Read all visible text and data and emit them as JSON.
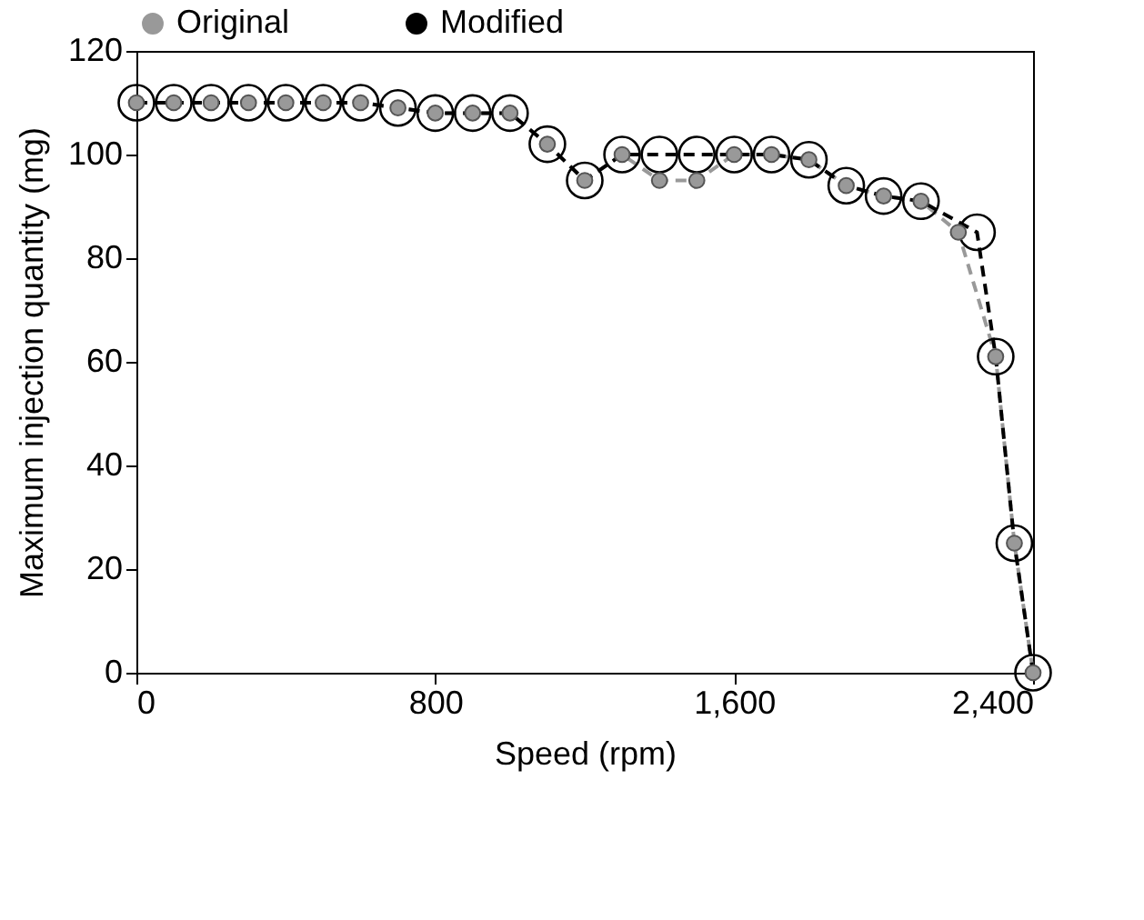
{
  "chart_data": {
    "type": "line",
    "xlabel": "Speed (rpm)",
    "ylabel": "Maximum injection quantity  (mg)",
    "xlim": [
      0,
      2400
    ],
    "xticks": [
      0,
      {
        "value": 800,
        "label": "800"
      },
      {
        "value": 1600,
        "label": "1,600"
      },
      {
        "value": 2400,
        "label": "2,400"
      }
    ],
    "ylim": [
      0,
      120
    ],
    "yticks": [
      0,
      20,
      40,
      60,
      80,
      100,
      120
    ],
    "grid": false,
    "legend": "top",
    "marker": "circle",
    "line_style": "dashed",
    "series": [
      {
        "name": "Original",
        "color": "#999999",
        "x": [
          0,
          100,
          200,
          300,
          400,
          500,
          600,
          700,
          800,
          900,
          1000,
          1100,
          1200,
          1300,
          1400,
          1500,
          1600,
          1700,
          1800,
          1900,
          2000,
          2100,
          2200,
          2300,
          2350,
          2400
        ],
        "values": [
          110,
          110,
          110,
          110,
          110,
          110,
          110,
          109,
          108,
          108,
          108,
          102,
          95,
          100,
          95,
          95,
          100,
          100,
          99,
          94,
          92,
          91,
          85,
          61,
          25,
          0
        ]
      },
      {
        "name": "Modified",
        "color": "#000000",
        "x": [
          0,
          100,
          200,
          300,
          400,
          500,
          600,
          700,
          800,
          900,
          1000,
          1100,
          1200,
          1300,
          1400,
          1500,
          1600,
          1700,
          1800,
          1900,
          2000,
          2100,
          2250,
          2300,
          2350,
          2400
        ],
        "values": [
          110,
          110,
          110,
          110,
          110,
          110,
          110,
          109,
          108,
          108,
          108,
          102,
          95,
          100,
          100,
          100,
          100,
          100,
          99,
          94,
          92,
          91,
          85,
          61,
          25,
          0
        ]
      }
    ]
  }
}
